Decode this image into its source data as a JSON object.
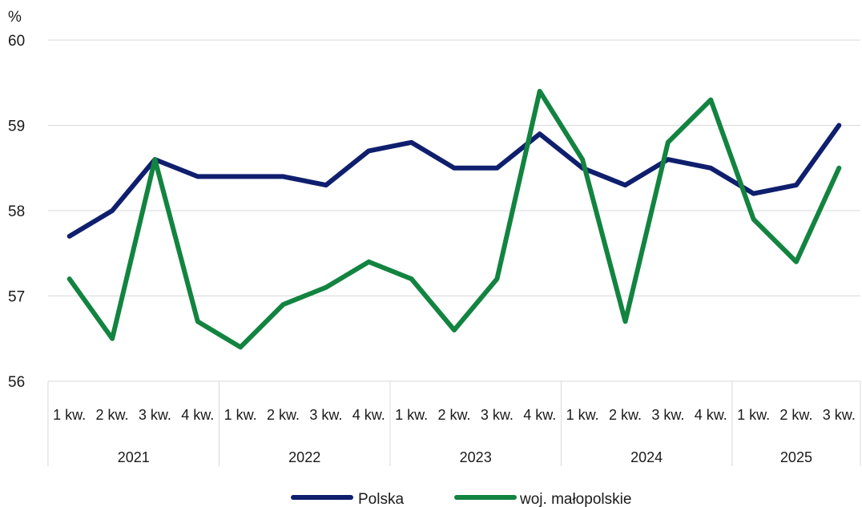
{
  "chart_data": {
    "type": "line",
    "unit_label": "%",
    "ylim": [
      56,
      60
    ],
    "yticks": [
      "56",
      "57",
      "58",
      "59",
      "60"
    ],
    "grid": true,
    "legend_position": "bottom",
    "categories": [
      "1 kw.",
      "2 kw.",
      "3 kw.",
      "4 kw.",
      "1 kw.",
      "2 kw.",
      "3 kw.",
      "4 kw.",
      "1 kw.",
      "2 kw.",
      "3 kw.",
      "4 kw.",
      "1 kw.",
      "2 kw.",
      "3 kw.",
      "4 kw.",
      "1 kw.",
      "2 kw.",
      "3 kw."
    ],
    "groups": [
      {
        "label": "2021",
        "count": 4
      },
      {
        "label": "2022",
        "count": 4
      },
      {
        "label": "2023",
        "count": 4
      },
      {
        "label": "2024",
        "count": 4
      },
      {
        "label": "2025",
        "count": 3
      }
    ],
    "series": [
      {
        "name": "Polska",
        "color": "#0f1f6e",
        "values": [
          57.7,
          58.0,
          58.6,
          58.4,
          58.4,
          58.4,
          58.3,
          58.7,
          58.8,
          58.5,
          58.5,
          58.9,
          58.5,
          58.3,
          58.6,
          58.5,
          58.2,
          58.3,
          59.0
        ]
      },
      {
        "name": "woj. małopolskie",
        "color": "#128440",
        "values": [
          57.2,
          56.5,
          58.6,
          56.7,
          56.4,
          56.9,
          57.1,
          57.4,
          57.2,
          56.6,
          57.2,
          59.4,
          58.6,
          56.7,
          58.8,
          59.3,
          57.9,
          57.4,
          58.5
        ]
      }
    ]
  }
}
